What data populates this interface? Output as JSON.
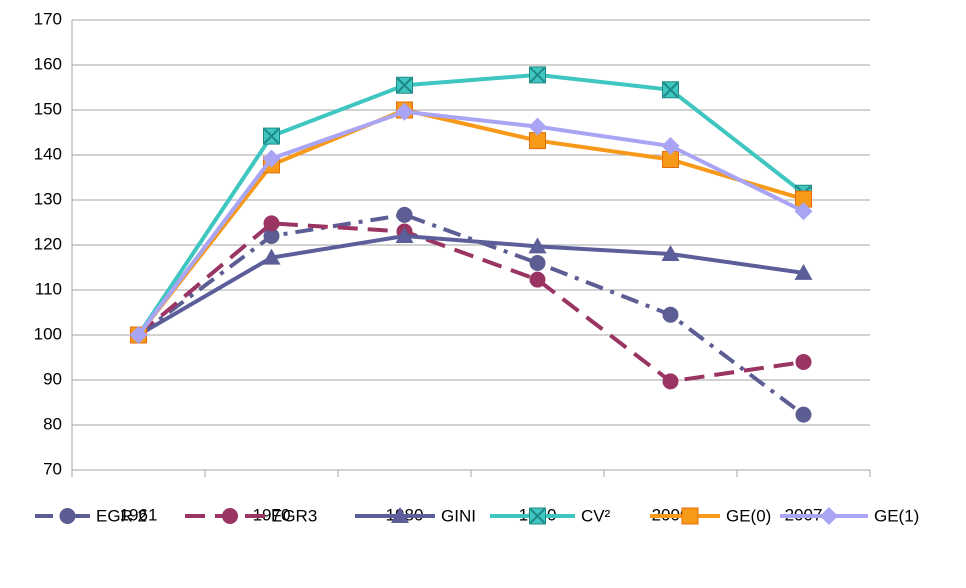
{
  "chart_data": {
    "type": "line",
    "categories": [
      "1961",
      "1970",
      "1980",
      "1990",
      "2000",
      "2007"
    ],
    "series": [
      {
        "name": "EGR 2",
        "color": "#5b5d93",
        "dash": "dash-dot",
        "marker": "circle",
        "values": [
          100,
          122,
          126.7,
          116,
          104.5,
          82.3
        ]
      },
      {
        "name": "EGR3",
        "color": "#9a3462",
        "dash": "dash",
        "marker": "circle",
        "values": [
          100,
          124.8,
          123,
          112.3,
          89.7,
          94
        ]
      },
      {
        "name": "GINI",
        "color": "#5b5e99",
        "dash": "solid",
        "marker": "triangle",
        "values": [
          100,
          117.2,
          122,
          119.7,
          118,
          113.8
        ]
      },
      {
        "name": "CV²",
        "color": "#3fc6c0",
        "dash": "solid",
        "marker": "square-x",
        "values": [
          100,
          144.2,
          155.5,
          157.8,
          154.5,
          131.5
        ]
      },
      {
        "name": "GE(0)",
        "color": "#f79a1a",
        "dash": "solid",
        "marker": "square",
        "values": [
          100,
          137.8,
          150,
          143.2,
          139,
          130.2
        ]
      },
      {
        "name": "GE(1)",
        "color": "#a9a4f4",
        "dash": "solid",
        "marker": "diamond",
        "values": [
          100,
          139.2,
          149.6,
          146.3,
          142,
          127.5
        ]
      }
    ],
    "ylim": [
      70,
      170
    ],
    "yticks": [
      70,
      80,
      90,
      100,
      110,
      120,
      130,
      140,
      150,
      160,
      170
    ],
    "grid": true
  }
}
